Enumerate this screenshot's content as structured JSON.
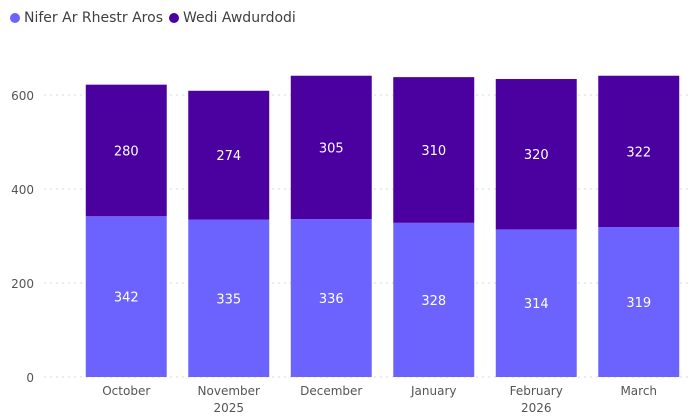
{
  "colors": {
    "series1": "#6C63FF",
    "series2": "#4B00A0",
    "grid": "#d8d8d8",
    "axis_text": "#555555",
    "label_text": "#ffffff"
  },
  "legend": [
    {
      "name": "Nifer Ar Rhestr Aros",
      "color": "#6C63FF"
    },
    {
      "name": "Wedi Awdurdodi",
      "color": "#4B00A0"
    }
  ],
  "chart_data": {
    "type": "bar",
    "stacked": true,
    "categories": [
      "October",
      "November",
      "December",
      "January",
      "February",
      "March"
    ],
    "year_labels": [
      {
        "text": "2025",
        "category_index": 1
      },
      {
        "text": "2026",
        "category_index": 4
      }
    ],
    "series": [
      {
        "name": "Nifer Ar Rhestr Aros",
        "values": [
          342,
          335,
          336,
          328,
          314,
          319
        ]
      },
      {
        "name": "Wedi Awdurdodi",
        "values": [
          280,
          274,
          305,
          310,
          320,
          322
        ]
      }
    ],
    "yticks": [
      0,
      200,
      400,
      600
    ],
    "ylim": [
      0,
      700
    ],
    "grid": true,
    "legend_position": "top-left"
  }
}
